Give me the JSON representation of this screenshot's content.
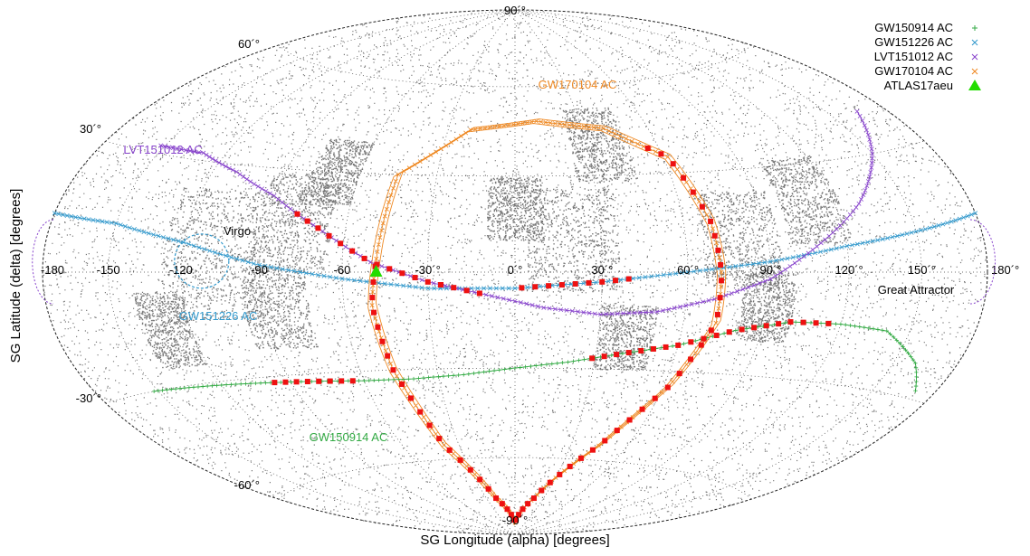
{
  "chart_data": {
    "type": "scatter",
    "projection": "aitoff-hammer all-sky",
    "xlabel": "SG Longitude (alpha) [degrees]",
    "ylabel": "SG Latitude (delta) [degrees]",
    "xlim": [
      -180,
      180
    ],
    "ylim": [
      -90,
      90
    ],
    "grid": true,
    "legend_position": "top-right",
    "lon_ticks": [
      {
        "value": -180,
        "label": "-180"
      },
      {
        "value": -150,
        "label": "-150"
      },
      {
        "value": -120,
        "label": "-120"
      },
      {
        "value": -90,
        "label": "-90"
      },
      {
        "value": -60,
        "label": "-60"
      },
      {
        "value": -30,
        "label": "-30´°"
      },
      {
        "value": 0,
        "label": "0´°"
      },
      {
        "value": 30,
        "label": "30´°"
      },
      {
        "value": 60,
        "label": "60´°"
      },
      {
        "value": 90,
        "label": "90´°"
      },
      {
        "value": 120,
        "label": "120´°"
      },
      {
        "value": 150,
        "label": "150´°"
      },
      {
        "value": 180,
        "label": "180´°"
      }
    ],
    "lat_ticks": [
      {
        "value": 90,
        "label": "90´°"
      },
      {
        "value": 60,
        "label": "60´°"
      },
      {
        "value": 30,
        "label": "30´°"
      },
      {
        "value": -30,
        "label": "-30´°"
      },
      {
        "value": -60,
        "label": "-60´°"
      },
      {
        "value": -90,
        "label": "-90´°"
      }
    ],
    "series": [
      {
        "name": "GW150914 AC",
        "color": "#33aa44",
        "marker": "+",
        "points": [
          [
            -152,
            -30
          ],
          [
            -120,
            -31
          ],
          [
            -90,
            -32
          ],
          [
            -60,
            -33
          ],
          [
            -40,
            -33
          ],
          [
            -20,
            -32
          ],
          [
            0,
            -30
          ],
          [
            20,
            -28
          ],
          [
            40,
            -25
          ],
          [
            60,
            -22
          ],
          [
            80,
            -17
          ],
          [
            100,
            -14
          ],
          [
            120,
            -14
          ],
          [
            140,
            -15
          ],
          [
            160,
            -22
          ],
          [
            170,
            -28
          ]
        ]
      },
      {
        "name": "GW151226 AC",
        "color": "#3399cc",
        "marker": "x",
        "points": [
          [
            -180,
            13
          ],
          [
            -150,
            12
          ],
          [
            -120,
            8
          ],
          [
            -90,
            2
          ],
          [
            -60,
            -2
          ],
          [
            -30,
            -5
          ],
          [
            0,
            -5
          ],
          [
            30,
            -3
          ],
          [
            60,
            0
          ],
          [
            90,
            3
          ],
          [
            120,
            7
          ],
          [
            150,
            10
          ],
          [
            180,
            13
          ]
        ]
      },
      {
        "name": "LVT151012 AC",
        "color": "#8844cc",
        "marker": "x",
        "points": [
          [
            -152,
            32
          ],
          [
            -130,
            32
          ],
          [
            -110,
            28
          ],
          [
            -90,
            22
          ],
          [
            -70,
            13
          ],
          [
            -50,
            3
          ],
          [
            -30,
            -3
          ],
          [
            -10,
            -7
          ],
          [
            10,
            -11
          ],
          [
            30,
            -13
          ],
          [
            50,
            -12
          ],
          [
            70,
            -8
          ],
          [
            90,
            -2
          ],
          [
            110,
            8
          ],
          [
            130,
            18
          ],
          [
            150,
            30
          ],
          [
            165,
            40
          ]
        ]
      },
      {
        "name": "GW170104 AC",
        "color": "#ee8822",
        "marker": "x",
        "points": [
          [
            -48,
            4
          ],
          [
            -45,
            30
          ],
          [
            -20,
            45
          ],
          [
            10,
            48
          ],
          [
            40,
            45
          ],
          [
            62,
            35
          ],
          [
            70,
            15
          ],
          [
            72,
            0
          ],
          [
            72,
            -15
          ],
          [
            62,
            -35
          ],
          [
            45,
            -55
          ],
          [
            20,
            -75
          ],
          [
            0,
            -85
          ],
          [
            -20,
            -75
          ],
          [
            -38,
            -55
          ],
          [
            -47,
            -30
          ],
          [
            -50,
            -10
          ],
          [
            -48,
            4
          ]
        ]
      }
    ],
    "highlight_segments_color": "#ee1111",
    "points": [
      {
        "name": "ATLAS17aeu",
        "color": "#22dd00",
        "marker": "triangle",
        "x": -48,
        "y": 0
      }
    ],
    "annotations": [
      {
        "text": "Virgo",
        "color": "#000000"
      },
      {
        "text": "Great Attractor",
        "color": "#000000"
      },
      {
        "text": "LVT151012 AC",
        "color": "#8844cc"
      },
      {
        "text": "GW151226 AC",
        "color": "#3399cc"
      },
      {
        "text": "GW150914 AC",
        "color": "#33aa44"
      },
      {
        "text": "GW170104 AC",
        "color": "#ee8822"
      }
    ],
    "legend": [
      {
        "label": "GW150914 AC",
        "symbol": "+",
        "color": "#33aa44"
      },
      {
        "label": "GW151226 AC",
        "symbol": "×",
        "color": "#3399cc"
      },
      {
        "label": "LVT151012 AC",
        "symbol": "×",
        "color": "#8844cc"
      },
      {
        "label": "GW170104 AC",
        "symbol": "×",
        "color": "#ee8822"
      },
      {
        "label": "ATLAS17aeu",
        "symbol": "▲",
        "color": "#22dd00"
      }
    ]
  }
}
